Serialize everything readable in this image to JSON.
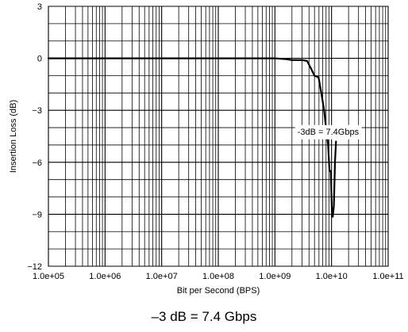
{
  "chart_data": {
    "type": "line",
    "title": "",
    "xlabel": "Bit per Second (BPS)",
    "ylabel": "Insertion Loss (dB)",
    "xscale": "log",
    "xlim": [
      100000,
      100000000000
    ],
    "ylim": [
      -12,
      3
    ],
    "grid": true,
    "x_tick_labels": [
      "1.0e+05",
      "1.0e+06",
      "1.0e+07",
      "1.0e+08",
      "1.0e+09",
      "1.0e+10",
      "1.0e+11"
    ],
    "y_tick_labels": [
      "−12",
      "−9",
      "−6",
      "−3",
      "0",
      "3"
    ],
    "y_tick_values": [
      -12,
      -9,
      -6,
      -3,
      0,
      3
    ],
    "annotation": {
      "text": "-3dB = 7.4Gbps",
      "x": 2500000000,
      "y": -4.4
    },
    "series": [
      {
        "color": "#000000",
        "x": [
          100000,
          1000000,
          10000000,
          100000000,
          1000000000,
          1600000000,
          2000000000,
          3000000000,
          3700000000,
          4200000000,
          5000000000,
          5900000000,
          6600000000,
          7400000000,
          8100000000,
          8700000000,
          9200000000,
          9700000000,
          10100000000,
          10500000000,
          11000000000,
          11500000000,
          12000000000
        ],
        "y": [
          0,
          0,
          0,
          0,
          0,
          -0.05,
          -0.1,
          -0.1,
          -0.15,
          -0.5,
          -1.0,
          -1.1,
          -2.0,
          -3.0,
          -4.2,
          -5.0,
          -6.5,
          -6.5,
          -8.6,
          -9.15,
          -8.5,
          -6.0,
          -4.8
        ]
      }
    ]
  },
  "caption": "–3 dB = 7.4 Gbps"
}
